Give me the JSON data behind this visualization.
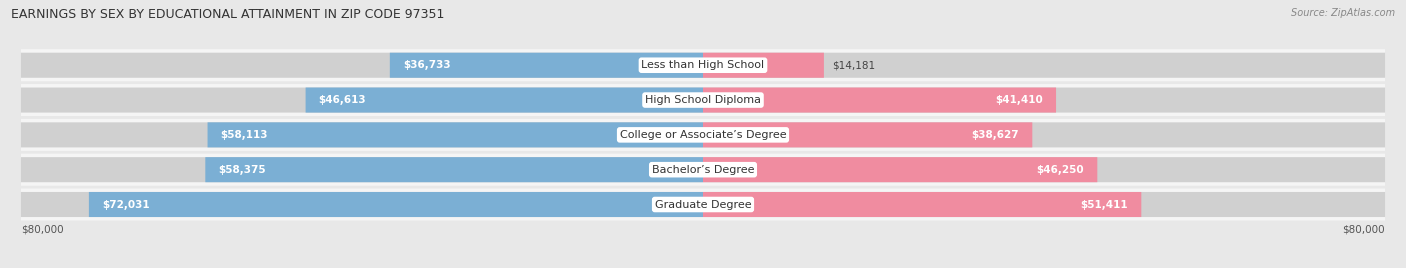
{
  "title": "EARNINGS BY SEX BY EDUCATIONAL ATTAINMENT IN ZIP CODE 97351",
  "source": "Source: ZipAtlas.com",
  "categories": [
    "Less than High School",
    "High School Diploma",
    "College or Associate’s Degree",
    "Bachelor’s Degree",
    "Graduate Degree"
  ],
  "male_values": [
    36733,
    46613,
    58113,
    58375,
    72031
  ],
  "female_values": [
    14181,
    41410,
    38627,
    46250,
    51411
  ],
  "male_color": "#7bafd4",
  "female_color": "#f08ca0",
  "max_value": 80000,
  "bg_color": "#e8e8e8",
  "row_bg_color": "#f5f5f5",
  "bar_bg_color": "#d0d0d0"
}
